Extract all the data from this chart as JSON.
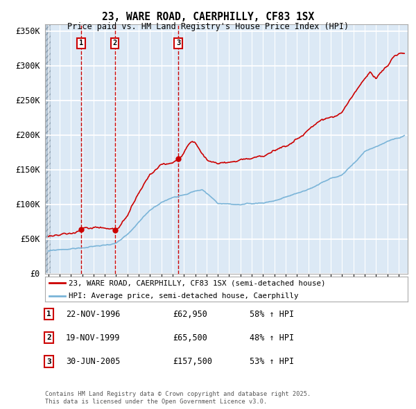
{
  "title": "23, WARE ROAD, CAERPHILLY, CF83 1SX",
  "subtitle": "Price paid vs. HM Land Registry's House Price Index (HPI)",
  "legend_line1": "23, WARE ROAD, CAERPHILLY, CF83 1SX (semi-detached house)",
  "legend_line2": "HPI: Average price, semi-detached house, Caerphilly",
  "red_color": "#cc0000",
  "blue_color": "#7ab4d8",
  "background_color": "#dce9f5",
  "grid_color": "#ffffff",
  "vline_color": "#cc0000",
  "sales": [
    {
      "num": 1,
      "date": "22-NOV-1996",
      "price": "£62,950",
      "pct": "58% ↑ HPI",
      "year": 1996.89
    },
    {
      "num": 2,
      "date": "19-NOV-1999",
      "price": "£65,500",
      "pct": "48% ↑ HPI",
      "year": 1999.88
    },
    {
      "num": 3,
      "date": "30-JUN-2005",
      "price": "£157,500",
      "pct": "53% ↑ HPI",
      "year": 2005.49
    }
  ],
  "xmin": 1993.7,
  "xmax": 2025.8,
  "ymin": 0,
  "ymax": 360000,
  "yticks": [
    0,
    50000,
    100000,
    150000,
    200000,
    250000,
    300000,
    350000
  ],
  "ylabels": [
    "£0",
    "£50K",
    "£100K",
    "£150K",
    "£200K",
    "£250K",
    "£300K",
    "£350K"
  ],
  "footer_line1": "Contains HM Land Registry data © Crown copyright and database right 2025.",
  "footer_line2": "This data is licensed under the Open Government Licence v3.0.",
  "hatch_end_year": 1994.2
}
